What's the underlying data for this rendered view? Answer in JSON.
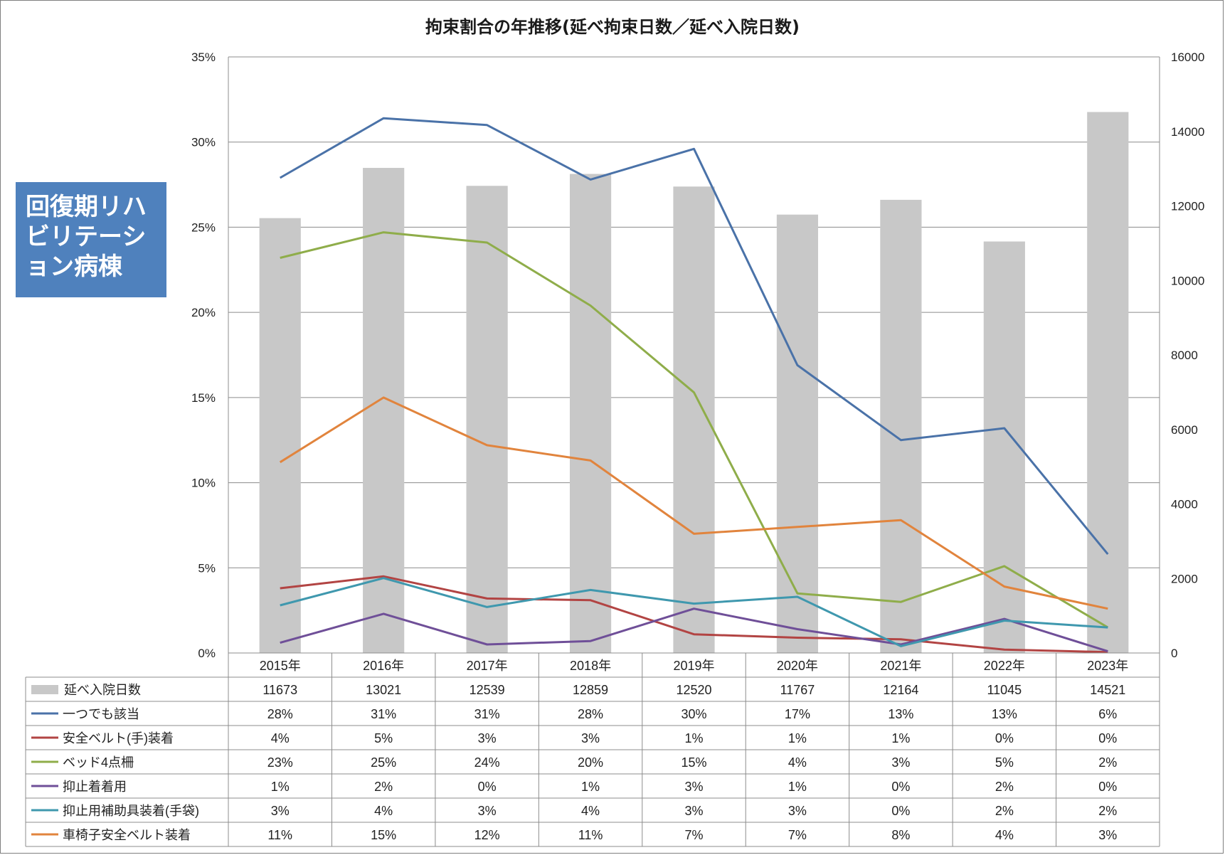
{
  "chart_data": {
    "type": "bar+line",
    "title": "拘束割合の年推移(延べ拘束日数／延べ入院日数)",
    "annotation": "回復期リハビリテーション病棟",
    "categories": [
      "2015年",
      "2016年",
      "2017年",
      "2018年",
      "2019年",
      "2020年",
      "2021年",
      "2022年",
      "2023年"
    ],
    "y_left": {
      "min": 0,
      "max": 35,
      "ticks": [
        "0%",
        "5%",
        "10%",
        "15%",
        "20%",
        "25%",
        "30%",
        "35%"
      ]
    },
    "y_right": {
      "min": 0,
      "max": 16000,
      "ticks": [
        "0",
        "2000",
        "4000",
        "6000",
        "8000",
        "10000",
        "12000",
        "14000",
        "16000"
      ]
    },
    "grid": true,
    "legend": "data-table-below",
    "bar_series": {
      "name": "延べ入院日数",
      "color": "#c8c8c8",
      "axis": "right",
      "values": [
        11673,
        13021,
        12539,
        12859,
        12520,
        11767,
        12164,
        11045,
        14521
      ]
    },
    "line_series": [
      {
        "name": "一つでも該当",
        "color": "#4a72a8",
        "values": [
          27.9,
          31.4,
          31.0,
          27.8,
          29.6,
          16.9,
          12.5,
          13.2,
          5.8
        ],
        "labels": [
          "28%",
          "31%",
          "31%",
          "28%",
          "30%",
          "17%",
          "13%",
          "13%",
          "6%"
        ]
      },
      {
        "name": "安全ベルト(手)装着",
        "color": "#b24443",
        "values": [
          3.8,
          4.5,
          3.2,
          3.1,
          1.1,
          0.9,
          0.8,
          0.2,
          0.05
        ],
        "labels": [
          "4%",
          "5%",
          "3%",
          "3%",
          "1%",
          "1%",
          "1%",
          "0%",
          "0%"
        ]
      },
      {
        "name": "ベッド4点柵",
        "color": "#8fad4a",
        "values": [
          23.2,
          24.7,
          24.1,
          20.4,
          15.3,
          3.5,
          3.0,
          5.1,
          1.5
        ],
        "labels": [
          "23%",
          "25%",
          "24%",
          "20%",
          "15%",
          "4%",
          "3%",
          "5%",
          "2%"
        ]
      },
      {
        "name": "抑止着着用",
        "color": "#6f4f98",
        "values": [
          0.6,
          2.3,
          0.5,
          0.7,
          2.6,
          1.4,
          0.5,
          2.0,
          0.1
        ],
        "labels": [
          "1%",
          "2%",
          "0%",
          "1%",
          "3%",
          "1%",
          "0%",
          "2%",
          "0%"
        ]
      },
      {
        "name": "抑止用補助具装着(手袋)",
        "color": "#3f98ae",
        "values": [
          2.8,
          4.4,
          2.7,
          3.7,
          2.9,
          3.3,
          0.4,
          1.9,
          1.5
        ],
        "labels": [
          "3%",
          "4%",
          "3%",
          "4%",
          "3%",
          "3%",
          "0%",
          "2%",
          "2%"
        ]
      },
      {
        "name": "車椅子安全ベルト装着",
        "color": "#e1843d",
        "values": [
          11.2,
          15.0,
          12.2,
          11.3,
          7.0,
          7.4,
          7.8,
          3.9,
          2.6
        ],
        "labels": [
          "11%",
          "15%",
          "12%",
          "11%",
          "7%",
          "7%",
          "8%",
          "4%",
          "3%"
        ]
      }
    ]
  }
}
